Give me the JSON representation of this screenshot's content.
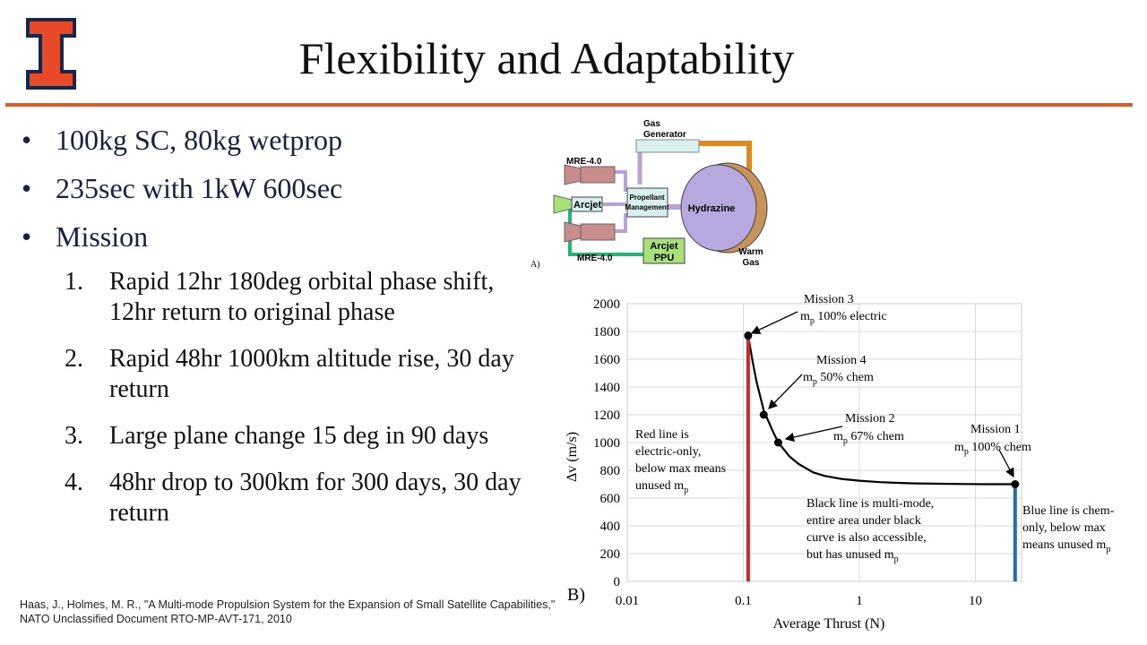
{
  "slide": {
    "title": "Flexibility and Adaptability",
    "bullets": [
      "100kg SC, 80kg wetprop",
      "235sec with 1kW 600sec",
      "Mission"
    ],
    "missions": [
      {
        "num": "1.",
        "text": "Rapid 12hr 180deg orbital phase shift, 12hr return to original phase"
      },
      {
        "num": "2.",
        "text": "Rapid 48hr 1000km altitude rise, 30 day return"
      },
      {
        "num": "3.",
        "text": "Large plane change 15 deg in 90 days"
      },
      {
        "num": "4.",
        "text": "48hr drop to 300km for 300 days, 30 day return"
      }
    ],
    "citation": "Haas, J., Holmes, M. R., \"A Multi-mode Propulsion System for the Expansion of Small Satellite Capabilities,\" NATO Unclassified Document RTO-MP-AVT-171, 2010"
  },
  "diagram": {
    "panel_label": "A)",
    "gas_generator_1": "Gas",
    "gas_generator_2": "Generator",
    "mre_top": "MRE-4.0",
    "mre_bottom": "MRE-4.0",
    "arcjet": "Arcjet",
    "propellant_1": "Propellant",
    "propellant_2": "Management",
    "hydrazine": "Hydrazine",
    "ppu_1": "Arcjet",
    "ppu_2": "PPU",
    "warm_gas_1": "Warm",
    "warm_gas_2": "Gas",
    "colors": {
      "thruster": "#c98c8c",
      "pipe_orange": "#e08a1e",
      "pipe_purple": "#b9a3d6",
      "pipe_green": "#22b573",
      "tank": "#b7a9e0",
      "tank_shell": "#c8925a",
      "box": "#d8f0f0",
      "ppu_box": "#a8e07a"
    }
  },
  "chart_data": {
    "type": "line",
    "panel_label": "B)",
    "xlabel": "Average Thrust (N)",
    "ylabel": "Δv (m/s)",
    "xscale": "log",
    "xlim": [
      0.01,
      25
    ],
    "ylim": [
      0,
      2000
    ],
    "xticks": [
      {
        "value": 0.01,
        "label": "0.01"
      },
      {
        "value": 0.1,
        "label": "0.1"
      },
      {
        "value": 1,
        "label": "1"
      },
      {
        "value": 10,
        "label": "10"
      }
    ],
    "yticks": [
      0,
      200,
      400,
      600,
      800,
      1000,
      1200,
      1400,
      1600,
      1800,
      2000
    ],
    "grid": true,
    "series": [
      {
        "color": "#000000",
        "x": [
          0.11,
          0.115,
          0.12,
          0.13,
          0.15,
          0.18,
          0.2,
          0.25,
          0.3,
          0.4,
          0.5,
          0.7,
          1,
          1.5,
          2,
          3,
          5,
          8,
          12,
          18,
          22
        ],
        "y": [
          1770,
          1680,
          1590,
          1440,
          1230,
          1080,
          1000,
          900,
          845,
          785,
          760,
          738,
          725,
          715,
          710,
          706,
          703,
          701,
          700,
          700,
          700
        ]
      },
      {
        "color": "#cc2a2a",
        "x": [
          0.11,
          0.11
        ],
        "y": [
          0,
          1770
        ]
      },
      {
        "color": "#1f6fb0",
        "x": [
          22,
          22
        ],
        "y": [
          0,
          700
        ]
      }
    ],
    "points": [
      {
        "x": 0.11,
        "y": 1770
      },
      {
        "x": 0.15,
        "y": 1200
      },
      {
        "x": 0.2,
        "y": 1000
      },
      {
        "x": 22,
        "y": 700
      }
    ],
    "annotations": {
      "m3_title": "Mission 3",
      "m3_mp": "m",
      "m3_sub": "p",
      "m3_rest": " 100% electric",
      "m4_title": "Mission 4",
      "m4_mp": "m",
      "m4_sub": "p",
      "m4_rest": " 50% chem",
      "m2_title": "Mission 2",
      "m2_mp": "m",
      "m2_sub": "p",
      "m2_rest": " 67% chem",
      "m1_title": "Mission 1",
      "m1_mp": "m",
      "m1_sub": "p",
      "m1_rest": " 100% chem",
      "red_1": "Red line is",
      "red_2": "electric-only,",
      "red_3": "below max means",
      "red_4": "unused m",
      "red_4_sub": "p",
      "black_1": "Black line is multi-mode,",
      "black_2": "entire area under black",
      "black_3": "curve is also accessible,",
      "black_4": "but has unused m",
      "black_4_sub": "p",
      "blue_1": "Blue line is chem-",
      "blue_2": "only, below max",
      "blue_3": "means unused m",
      "blue_3_sub": "p"
    }
  }
}
